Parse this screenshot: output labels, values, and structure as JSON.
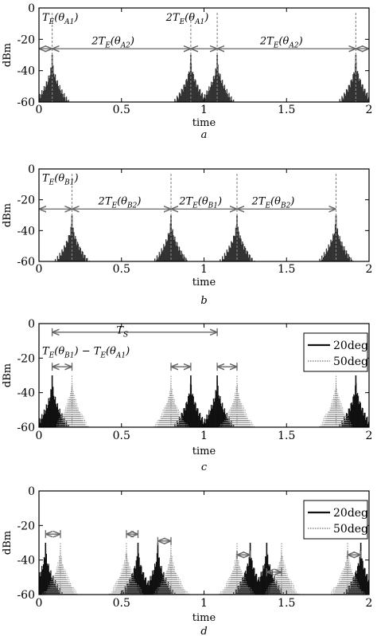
{
  "chart_data": [
    {
      "id": "a",
      "type": "line",
      "panel_label": "a",
      "xlabel": "time",
      "ylabel": "dBm",
      "xlim": [
        0,
        2
      ],
      "ylim": [
        -60,
        0
      ],
      "xticks": [
        "0",
        "0.5",
        "1",
        "1.5",
        "2"
      ],
      "yticks": [
        "0",
        "-20",
        "-40",
        "-60"
      ],
      "series": [
        {
          "color": "#333333",
          "style": "solid",
          "peaks": [
            0.08,
            0.92,
            1.08,
            1.92
          ],
          "peak_level": -30,
          "floor": -60
        }
      ],
      "markers": [
        0.08,
        0.92,
        1.08,
        1.92
      ],
      "annotations": [
        {
          "text": "T_E(θ_A1)",
          "base": "T",
          "sub": "E",
          "mid": "(θ",
          "sub2": "A1",
          "end": ")",
          "x": 0.0,
          "y": -6
        },
        {
          "text": "2T_E(θ_A1)",
          "base": "2T",
          "sub": "E",
          "mid": "(θ",
          "sub2": "A1",
          "end": ")",
          "x": 0.75,
          "y": -6
        },
        {
          "text": "2T_E(θ_A2)",
          "base": "2T",
          "sub": "E",
          "mid": "(θ",
          "sub2": "A2",
          "end": ")",
          "x": 0.3,
          "y": -21
        },
        {
          "text": "2T_E(θ_A2)",
          "base": "2T",
          "sub": "E",
          "mid": "(θ",
          "sub2": "A2",
          "end": ")",
          "x": 1.32,
          "y": -21
        }
      ],
      "spans": [
        {
          "from": 0.0,
          "to": 0.08,
          "y": -26
        },
        {
          "from": 0.08,
          "to": 0.92,
          "y": -26
        },
        {
          "from": 0.92,
          "to": 1.08,
          "y": -26
        },
        {
          "from": 1.08,
          "to": 1.92,
          "y": -26
        },
        {
          "from": 1.92,
          "to": 2.0,
          "y": -26
        }
      ]
    },
    {
      "id": "b",
      "type": "line",
      "panel_label": "b",
      "xlabel": "time",
      "ylabel": "dBm",
      "xlim": [
        0,
        2
      ],
      "ylim": [
        -60,
        0
      ],
      "xticks": [
        "0",
        "0.5",
        "1",
        "1.5",
        "2"
      ],
      "yticks": [
        "0",
        "-20",
        "-40",
        "-60"
      ],
      "series": [
        {
          "color": "#333333",
          "style": "solid",
          "peaks": [
            0.2,
            0.8,
            1.2,
            1.8
          ],
          "peak_level": -30,
          "floor": -60
        }
      ],
      "markers": [
        0.2,
        0.8,
        1.2,
        1.8
      ],
      "annotations": [
        {
          "text": "T_E(θ_B1)",
          "base": "T",
          "sub": "E",
          "mid": "(θ",
          "sub2": "B1",
          "end": ")",
          "x": 0.0,
          "y": -6
        },
        {
          "text": "2T_E(θ_B2)",
          "base": "2T",
          "sub": "E",
          "mid": "(θ",
          "sub2": "B2",
          "end": ")",
          "x": 0.34,
          "y": -21
        },
        {
          "text": "2T_E(θ_B1)",
          "base": "2T",
          "sub": "E",
          "mid": "(θ",
          "sub2": "B1",
          "end": ")",
          "x": 0.83,
          "y": -21
        },
        {
          "text": "2T_E(θ_B2)",
          "base": "2T",
          "sub": "E",
          "mid": "(θ",
          "sub2": "B2",
          "end": ")",
          "x": 1.27,
          "y": -21
        }
      ],
      "spans": [
        {
          "from": 0.0,
          "to": 0.2,
          "y": -26
        },
        {
          "from": 0.2,
          "to": 0.8,
          "y": -26
        },
        {
          "from": 0.8,
          "to": 1.2,
          "y": -26
        },
        {
          "from": 1.2,
          "to": 1.8,
          "y": -26
        }
      ]
    },
    {
      "id": "c",
      "type": "line",
      "panel_label": "c",
      "xlabel": "time",
      "ylabel": "dBm",
      "xlim": [
        0,
        2
      ],
      "ylim": [
        -60,
        0
      ],
      "xticks": [
        "0",
        "0.5",
        "1",
        "1.5",
        "2"
      ],
      "yticks": [
        "0",
        "-20",
        "-40",
        "-60"
      ],
      "legend": {
        "placement": "top-right"
      },
      "series": [
        {
          "name": "20deg",
          "color": "#111111",
          "style": "solid",
          "peaks": [
            0.08,
            0.92,
            1.08,
            1.92
          ],
          "peak_level": -30,
          "floor": -60
        },
        {
          "name": "50deg",
          "color": "#888888",
          "style": "dotted",
          "peaks": [
            0.2,
            0.8,
            1.2,
            1.8
          ],
          "peak_level": -30,
          "floor": -60
        }
      ],
      "annotations": [
        {
          "text": "T_S",
          "base": "T",
          "sub": "S",
          "mid": "",
          "sub2": "",
          "end": "",
          "x": 0.45,
          "y": -4
        },
        {
          "text": "T_E(θ_B1) − T_E(θ_A1)",
          "base": "T",
          "sub": "E",
          "mid": "(θ",
          "sub2": "B1",
          "end": ") − T",
          "sub3": "E",
          "mid2": "(θ",
          "sub4": "A1",
          "end2": ")",
          "x": 0.0,
          "y": -16
        }
      ],
      "spans": [
        {
          "from": 0.08,
          "to": 1.08,
          "y": -5
        },
        {
          "from": 0.08,
          "to": 0.2,
          "y": -25
        },
        {
          "from": 0.8,
          "to": 0.92,
          "y": -25
        },
        {
          "from": 1.08,
          "to": 1.2,
          "y": -25
        }
      ]
    },
    {
      "id": "d",
      "type": "line",
      "panel_label": "d",
      "xlabel": "time",
      "ylabel": "dBm",
      "xlim": [
        0,
        2
      ],
      "ylim": [
        -60,
        0
      ],
      "xticks": [
        "0",
        "0.5",
        "1",
        "1.5",
        "2"
      ],
      "yticks": [
        "0",
        "-20",
        "-40",
        "-60"
      ],
      "legend": {
        "placement": "top-right"
      },
      "series": [
        {
          "name": "20deg",
          "color": "#111111",
          "style": "solid",
          "peaks": [
            0.04,
            0.6,
            0.72,
            1.28,
            1.38,
            1.95
          ],
          "peak_level": -30,
          "floor": -60
        },
        {
          "name": "50deg",
          "color": "#888888",
          "style": "dotted",
          "peaks": [
            0.13,
            0.53,
            0.8,
            1.2,
            1.47,
            1.87
          ],
          "peak_level": -30,
          "floor": -60
        }
      ],
      "spans": [
        {
          "from": 0.04,
          "to": 0.13,
          "y": -25
        },
        {
          "from": 0.53,
          "to": 0.6,
          "y": -25
        },
        {
          "from": 0.72,
          "to": 0.8,
          "y": -29
        },
        {
          "from": 1.2,
          "to": 1.28,
          "y": -37
        },
        {
          "from": 1.38,
          "to": 1.47,
          "y": -47
        },
        {
          "from": 1.87,
          "to": 1.95,
          "y": -37
        }
      ]
    }
  ]
}
